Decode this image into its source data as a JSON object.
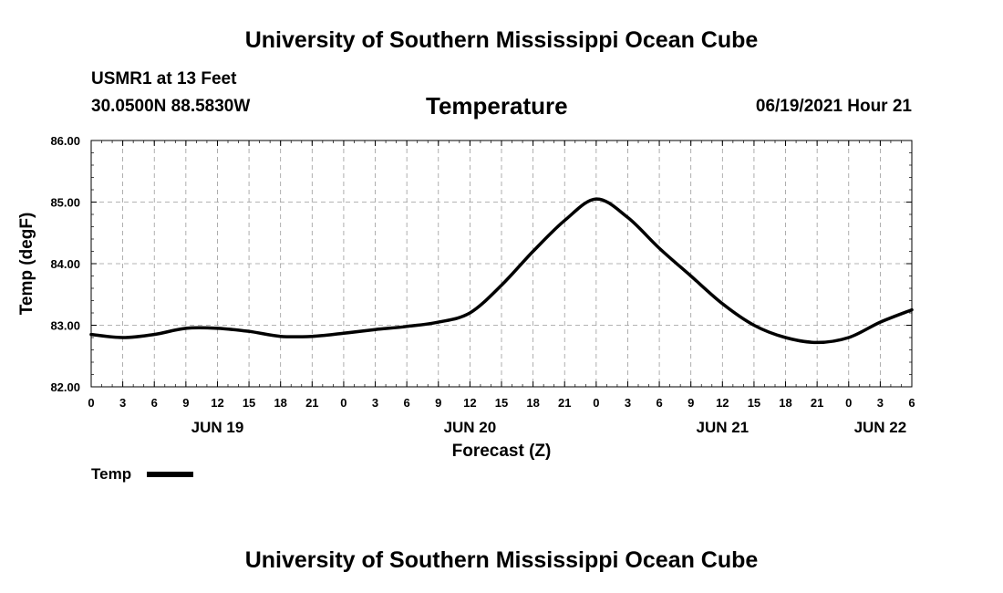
{
  "header": {
    "title": "University of Southern Mississippi Ocean Cube",
    "station": "USMR1 at 13 Feet",
    "coords": "30.0500N  88.5830W",
    "variable": "Temperature",
    "datetime": "06/19/2021 Hour 21"
  },
  "footer": {
    "title": "University of Southern Mississippi Ocean Cube"
  },
  "legend": {
    "label": "Temp"
  },
  "chart_data": {
    "type": "line",
    "title": "Temperature",
    "xlabel": "Forecast (Z)",
    "ylabel": "Temp (degF)",
    "ylim": [
      82.0,
      86.0
    ],
    "y_ticks": [
      "82.00",
      "83.00",
      "84.00",
      "85.00",
      "86.00"
    ],
    "xlim_hours": [
      0,
      78
    ],
    "x_tick_labels": [
      "0",
      "3",
      "6",
      "9",
      "12",
      "15",
      "18",
      "21",
      "0",
      "3",
      "6",
      "9",
      "12",
      "15",
      "18",
      "21",
      "0",
      "3",
      "6",
      "9",
      "12",
      "15",
      "18",
      "21",
      "0",
      "3",
      "6"
    ],
    "day_labels": [
      {
        "label": "JUN 19",
        "hour": 12
      },
      {
        "label": "JUN 20",
        "hour": 36
      },
      {
        "label": "JUN 21",
        "hour": 60
      },
      {
        "label": "JUN 22",
        "hour": 75
      }
    ],
    "grid": true,
    "series": [
      {
        "name": "Temp",
        "color": "#000000",
        "x_hours": [
          0,
          3,
          6,
          9,
          12,
          15,
          18,
          21,
          24,
          27,
          30,
          33,
          36,
          39,
          42,
          45,
          48,
          51,
          54,
          57,
          60,
          63,
          66,
          69,
          72,
          75,
          78
        ],
        "values": [
          82.85,
          82.8,
          82.85,
          82.95,
          82.95,
          82.9,
          82.82,
          82.82,
          82.87,
          82.93,
          82.98,
          83.05,
          83.2,
          83.65,
          84.2,
          84.7,
          85.05,
          84.75,
          84.25,
          83.8,
          83.35,
          83.0,
          82.8,
          82.72,
          82.8,
          83.05,
          83.25
        ]
      }
    ]
  }
}
